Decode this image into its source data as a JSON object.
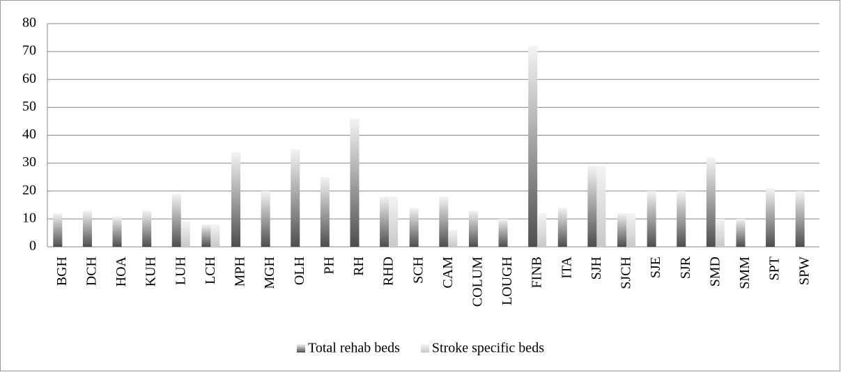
{
  "chart_data": {
    "type": "bar",
    "categories": [
      "BGH",
      "DCH",
      "HOA",
      "KUH",
      "LUH",
      "LCH",
      "MPH",
      "MGH",
      "OLH",
      "PH",
      "RH",
      "RHD",
      "SCH",
      "CAM",
      "COLUM",
      "LOUGH",
      "FINB",
      "ITA",
      "SJH",
      "SJCH",
      "SJE",
      "SJR",
      "SMD",
      "SMM",
      "SPT",
      "SPW"
    ],
    "series": [
      {
        "name": "Total rehab beds",
        "color": "#4d4d4d",
        "values": [
          12,
          13,
          11,
          13,
          19,
          8,
          34,
          20,
          35,
          25,
          46,
          18,
          14,
          18,
          13,
          10,
          72,
          14,
          29,
          12,
          20,
          20,
          32,
          10,
          21,
          20
        ]
      },
      {
        "name": "Stroke specific beds",
        "color": "#c8c8c8",
        "values": [
          0,
          0,
          0,
          0,
          9,
          8,
          0,
          0,
          0,
          0,
          0,
          18,
          0,
          6,
          0,
          0,
          12,
          0,
          29,
          12,
          0,
          0,
          10,
          0,
          0,
          0
        ]
      }
    ],
    "ylim": [
      0,
      80
    ],
    "yticks": [
      0,
      10,
      20,
      30,
      40,
      50,
      60,
      70,
      80
    ],
    "grid": true,
    "legend": "bottom"
  }
}
